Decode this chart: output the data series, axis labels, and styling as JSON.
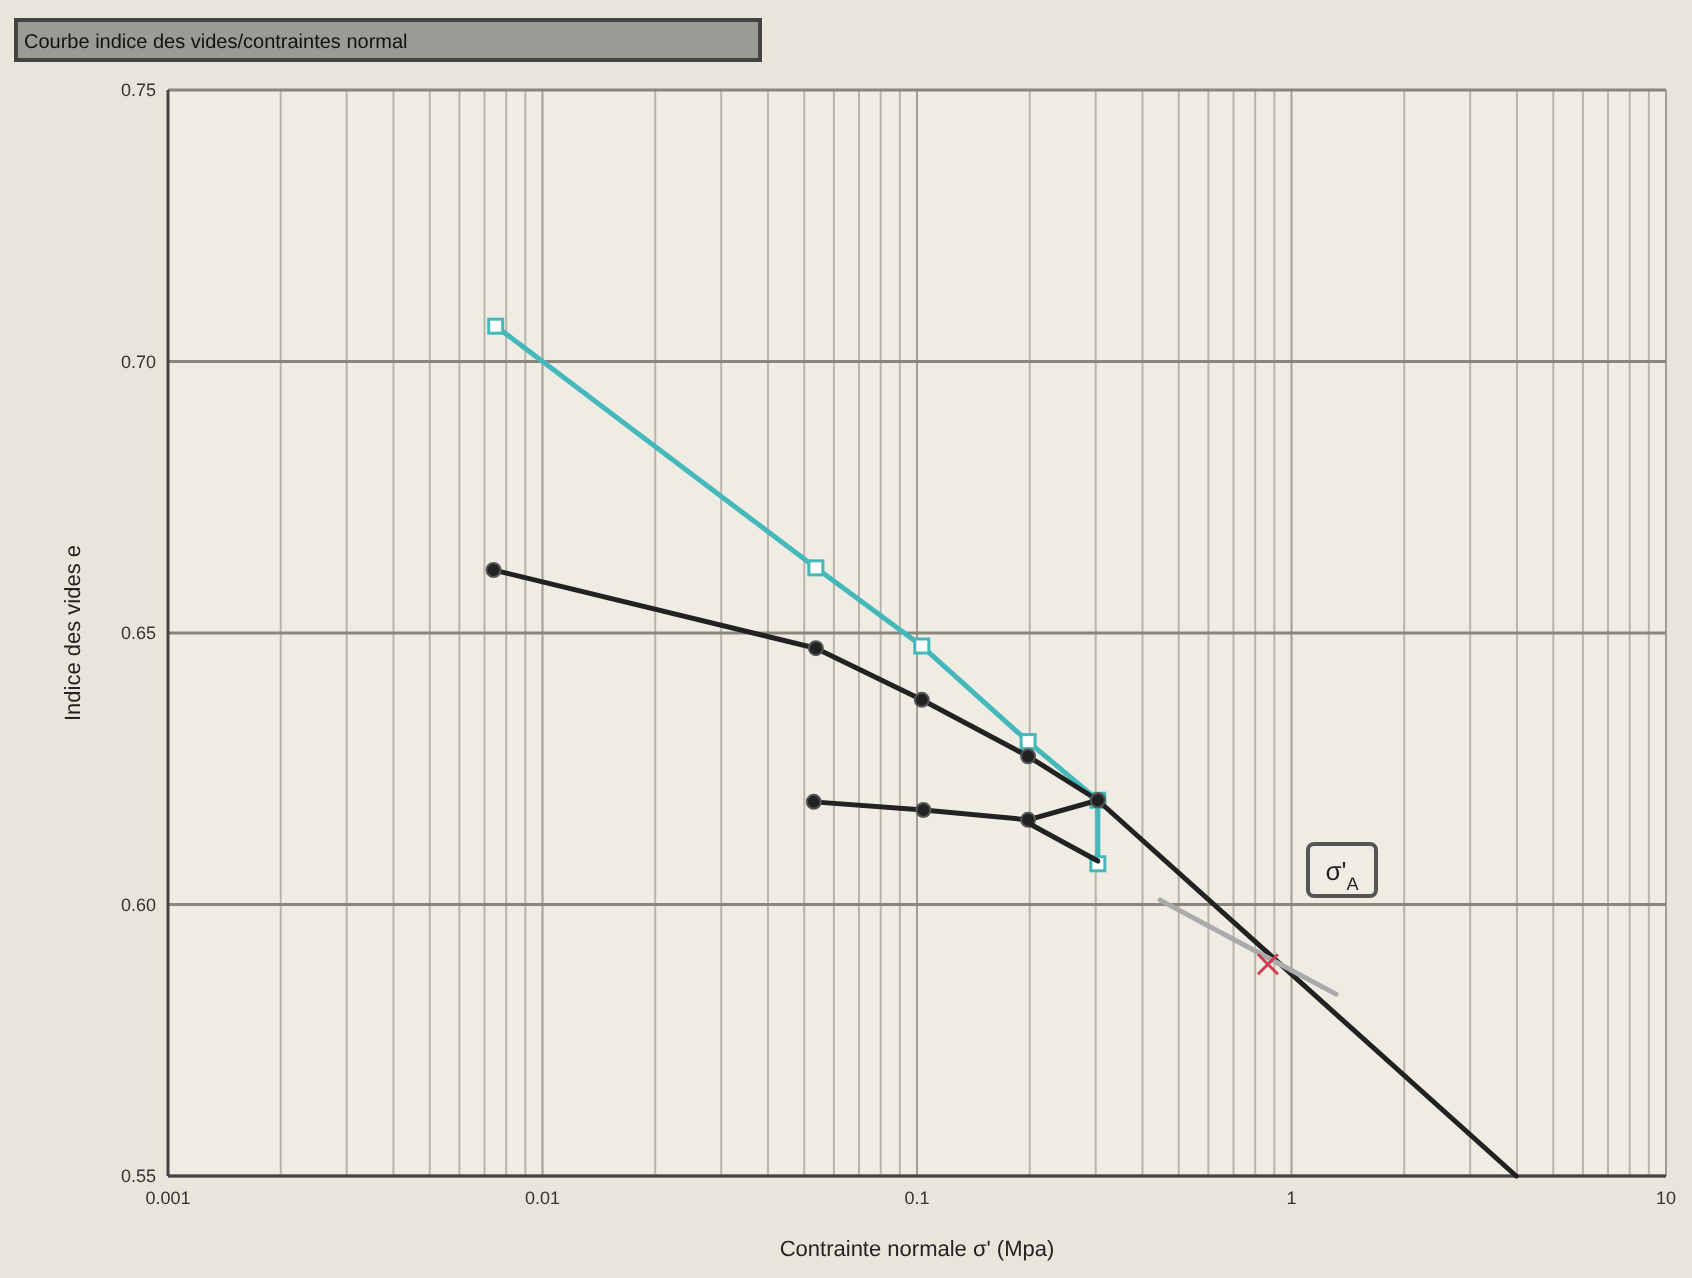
{
  "chart_data": {
    "type": "line",
    "title": "Courbe indice des vides/contraintes normal",
    "xlabel": "Contrainte normale σ' (Mpa)",
    "ylabel": "Indice des vides e",
    "log": "x",
    "grid": true,
    "xlim": [
      0.001,
      10
    ],
    "ylim": [
      0.55,
      0.75
    ],
    "xticks": [
      0.001,
      0.01,
      0.1,
      1,
      10
    ],
    "yticks": [
      {
        "value": 0.55,
        "label": "0.55"
      },
      {
        "value": 0.6,
        "label": "0.60"
      },
      {
        "value": 0.65,
        "label": "0.65"
      },
      {
        "value": 0.7,
        "label": "0.70"
      },
      {
        "value": 0.75,
        "label": "0.75"
      }
    ],
    "annotations": [
      "σ'$_{A}$"
    ],
    "series": [
      {
        "color": "#45b8bc",
        "marker": "square",
        "x": [
          0.0075,
          0.0537,
          0.103,
          0.198,
          0.304,
          0.304
        ],
        "values": [
          0.7065,
          0.662,
          0.6476,
          0.63,
          0.6192,
          0.6075
        ]
      },
      {
        "color": "#222222",
        "marker": "circle",
        "x": [
          0.0074,
          0.0537,
          0.103,
          0.198,
          0.304
        ],
        "values": [
          0.6616,
          0.6472,
          0.6377,
          0.6273,
          0.6192
        ]
      },
      {
        "color": "#222222",
        "x": [
          0.304,
          3.98
        ],
        "values": [
          0.6192,
          0.55
        ]
      },
      {
        "color": "#222222",
        "marker": "circle",
        "x": [
          0.053,
          0.104,
          0.198,
          0.304
        ],
        "values": [
          0.6189,
          0.6174,
          0.6156,
          0.6192
        ]
      },
      {
        "color": "#222222",
        "x": [
          0.198,
          0.304
        ],
        "values": [
          0.615,
          0.608
        ]
      },
      {
        "color": "#aaaaaa",
        "x": [
          0.446,
          1.315
        ],
        "values": [
          0.6008,
          0.5835
        ]
      },
      {
        "type": "scatter",
        "color": "#d04050",
        "marker": "cross",
        "x": [
          0.865
        ],
        "values": [
          0.589
        ]
      }
    ]
  }
}
